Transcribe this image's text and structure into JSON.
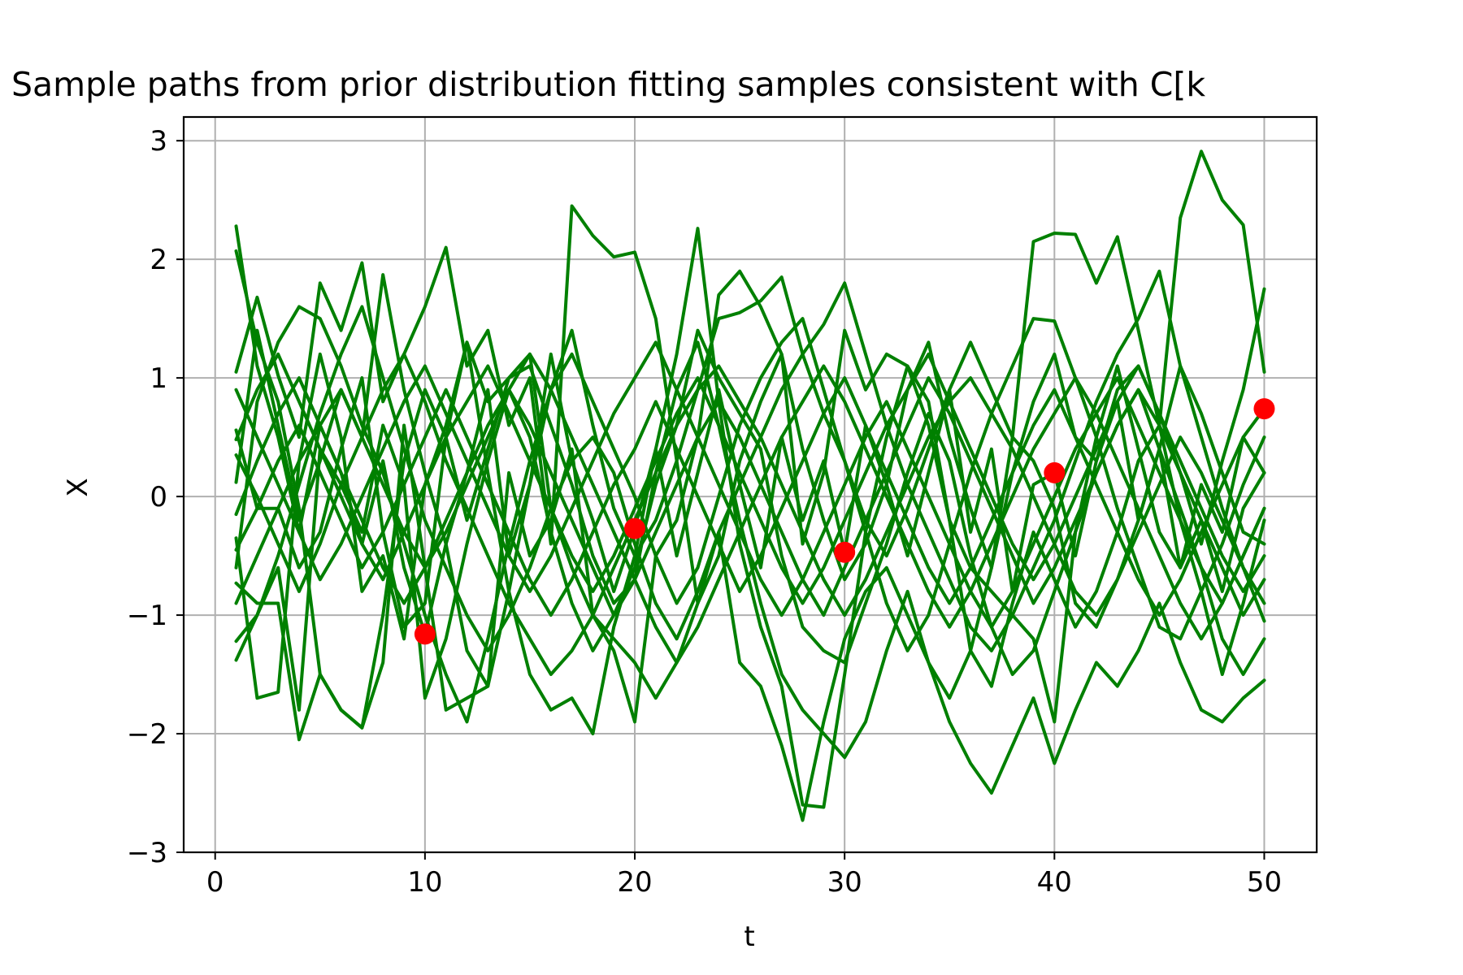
{
  "chart_data": {
    "type": "line",
    "title": "Sample paths from prior distribution fitting samples consistent with C[k",
    "xlabel": "t",
    "ylabel": "X",
    "xlim": [
      -1.5,
      52.5
    ],
    "ylim": [
      -3.0,
      3.2
    ],
    "xticks": [
      0,
      10,
      20,
      30,
      40,
      50
    ],
    "yticks": [
      -3,
      -2,
      -1,
      0,
      1,
      2,
      3
    ],
    "xtick_labels": [
      "0",
      "10",
      "20",
      "30",
      "40",
      "50"
    ],
    "ytick_labels": [
      "−3",
      "−2",
      "−1",
      "0",
      "1",
      "2",
      "3"
    ],
    "grid": true,
    "line_color": "#008000",
    "marker_color": "#ff0000",
    "x": [
      1,
      2,
      3,
      4,
      5,
      6,
      7,
      8,
      9,
      10,
      11,
      12,
      13,
      14,
      15,
      16,
      17,
      18,
      19,
      20,
      21,
      22,
      23,
      24,
      25,
      26,
      27,
      28,
      29,
      30,
      31,
      32,
      33,
      34,
      35,
      36,
      37,
      38,
      39,
      40,
      41,
      42,
      43,
      44,
      45,
      46,
      47,
      48,
      49,
      50
    ],
    "series": [
      {
        "values": [
          2.28,
          1.1,
          0.5,
          -0.3,
          0.6,
          0.2,
          -0.4,
          0.3,
          -0.6,
          -1.16,
          -0.4,
          0.2,
          0.9,
          -0.5,
          0.1,
          1.2,
          0.3,
          -0.2,
          -0.8,
          -0.27,
          0.4,
          -0.5,
          0.2,
          0.9,
          0.1,
          -0.6,
          0.5,
          -0.2,
          0.3,
          -0.47,
          0.6,
          0.1,
          -0.5,
          0.2,
          0.9,
          -0.3,
          0.4,
          -0.8,
          0.1,
          0.2,
          -0.5,
          0.3,
          0.8,
          -0.2,
          0.4,
          -0.6,
          0.1,
          -0.3,
          0.5,
          0.74
        ]
      },
      {
        "values": [
          2.07,
          1.3,
          0.8,
          -0.1,
          -1.5,
          -1.8,
          -1.95,
          -1.4,
          0.6,
          -0.6,
          -1.8,
          -1.7,
          -1.6,
          0.2,
          -0.5,
          -0.2,
          0.4,
          -1.0,
          -1.3,
          -1.9,
          -0.5,
          -0.2,
          0.5,
          1.7,
          1.9,
          1.6,
          1.2,
          -0.4,
          0.2,
          1.4,
          0.9,
          1.2,
          1.1,
          0.6,
          -0.2,
          -0.6,
          -0.8,
          -1.0,
          -1.2,
          -1.9,
          -0.3,
          0.5,
          1.1,
          0.4,
          -0.3,
          -0.6,
          -0.2,
          -0.8,
          -0.1,
          0.2
        ]
      },
      {
        "values": [
          1.05,
          1.68,
          1.02,
          0.5,
          1.8,
          1.4,
          1.97,
          0.8,
          1.2,
          1.6,
          2.1,
          1.1,
          1.4,
          0.6,
          1.0,
          -0.4,
          2.45,
          2.2,
          2.02,
          2.06,
          1.5,
          0.3,
          -0.9,
          -0.5,
          0.3,
          0.8,
          1.2,
          0.4,
          -0.2,
          -0.7,
          -0.4,
          0.1,
          0.9,
          1.3,
          0.5,
          -0.1,
          -0.6,
          0.2,
          0.8,
          1.2,
          0.5,
          0.3,
          0.9,
          1.1,
          0.7,
          0.2,
          -0.4,
          0.3,
          0.9,
          1.75
        ]
      },
      {
        "values": [
          -0.35,
          -1.7,
          -1.65,
          0.3,
          1.2,
          0.5,
          -0.8,
          -0.5,
          -1.2,
          0.1,
          0.6,
          1.3,
          0.2,
          -0.8,
          -1.5,
          -1.8,
          -1.7,
          -2.0,
          -1.1,
          -0.5,
          0.4,
          1.2,
          2.26,
          0.8,
          -0.4,
          -1.1,
          -1.6,
          -2.6,
          -2.62,
          -1.5,
          -0.3,
          0.5,
          1.1,
          0.8,
          -0.2,
          -1.3,
          -1.6,
          -0.9,
          -0.3,
          -0.7,
          -1.1,
          -0.8,
          -0.3,
          0.3,
          0.6,
          -0.2,
          -0.8,
          -1.5,
          -0.9,
          -0.2
        ]
      },
      {
        "values": [
          0.56,
          -0.1,
          -0.1,
          -0.6,
          -0.3,
          0.4,
          1.0,
          -0.3,
          -1.1,
          -0.9,
          0.5,
          1.3,
          0.8,
          1.0,
          1.2,
          -0.1,
          -0.6,
          -1.0,
          -1.2,
          -1.4,
          -1.7,
          -1.4,
          -0.9,
          -0.3,
          -1.4,
          -1.6,
          -2.1,
          -2.73,
          -1.9,
          -1.2,
          -0.8,
          -0.6,
          -1.0,
          -1.4,
          -1.7,
          -1.3,
          -0.6,
          0.5,
          0.3,
          -0.1,
          -0.9,
          -1.1,
          -0.7,
          -0.2,
          0.4,
          1.1,
          0.7,
          0.2,
          -0.3,
          -0.4
        ]
      },
      {
        "values": [
          -1.38,
          -1.0,
          -0.6,
          -1.8,
          0.4,
          0.1,
          -0.3,
          0.6,
          0.1,
          -1.7,
          -1.2,
          -0.4,
          0.3,
          0.9,
          0.5,
          -0.3,
          -0.9,
          -1.3,
          -1.0,
          -0.6,
          0.1,
          0.6,
          1.4,
          1.0,
          0.7,
          0.4,
          -0.5,
          -1.1,
          -1.3,
          -1.4,
          -0.9,
          -0.4,
          0.2,
          0.7,
          0.3,
          -0.5,
          -1.1,
          -1.5,
          -1.3,
          -0.8,
          -0.3,
          0.2,
          0.6,
          0.9,
          0.4,
          -0.1,
          -0.6,
          -1.2,
          -1.5,
          -1.2
        ]
      },
      {
        "values": [
          -0.73,
          -0.9,
          -0.9,
          -2.05,
          -1.5,
          -1.8,
          -1.95,
          -1.0,
          0.3,
          0.9,
          0.5,
          -0.2,
          0.4,
          1.0,
          1.1,
          0.6,
          0.1,
          -0.5,
          -0.9,
          -0.7,
          0.2,
          0.9,
          1.3,
          0.6,
          -0.2,
          -0.9,
          -1.5,
          -1.8,
          -2.0,
          -2.2,
          -1.9,
          -1.3,
          -0.8,
          -1.4,
          -1.9,
          -2.25,
          -2.5,
          -2.1,
          -1.7,
          -2.25,
          -1.8,
          -1.4,
          -1.6,
          -1.3,
          -0.9,
          -1.4,
          -1.8,
          -1.9,
          -1.7,
          -1.55
        ]
      },
      {
        "values": [
          0.12,
          1.4,
          0.6,
          -0.2,
          0.3,
          0.9,
          0.5,
          1.87,
          0.9,
          0.2,
          -0.4,
          -1.3,
          -1.6,
          -0.8,
          0.1,
          0.9,
          1.4,
          0.6,
          -0.1,
          -0.5,
          -0.2,
          0.3,
          0.9,
          1.5,
          1.55,
          1.65,
          1.85,
          1.2,
          0.7,
          0.3,
          -0.2,
          -0.5,
          -0.1,
          0.4,
          0.9,
          1.3,
          0.9,
          0.5,
          2.15,
          2.22,
          2.21,
          1.8,
          2.19,
          1.4,
          0.6,
          2.35,
          2.91,
          2.5,
          2.29,
          1.05
        ]
      },
      {
        "values": [
          -0.6,
          0.8,
          1.3,
          1.6,
          1.5,
          1.1,
          0.6,
          0.2,
          -0.4,
          -1.0,
          -1.5,
          -1.9,
          -1.2,
          -0.4,
          0.3,
          0.9,
          1.2,
          0.8,
          0.4,
          0.0,
          -0.5,
          -0.9,
          -0.6,
          0.0,
          0.6,
          1.0,
          1.3,
          1.5,
          0.9,
          0.3,
          -0.3,
          -0.9,
          -1.3,
          -1.0,
          -0.4,
          0.2,
          0.7,
          1.1,
          1.5,
          1.48,
          1.0,
          0.5,
          -0.1,
          -0.6,
          -1.1,
          -1.2,
          -0.8,
          -0.4,
          0.1,
          0.5
        ]
      },
      {
        "values": [
          -1.22,
          -1.0,
          -0.5,
          0.1,
          0.7,
          1.2,
          1.6,
          1.0,
          0.4,
          -0.2,
          -0.6,
          -1.0,
          -1.3,
          -1.0,
          -0.6,
          -0.1,
          0.3,
          0.5,
          0.2,
          -0.4,
          -0.9,
          -1.2,
          -0.8,
          -0.3,
          0.1,
          0.5,
          0.9,
          1.2,
          1.45,
          1.8,
          1.2,
          0.6,
          0.1,
          -0.3,
          -0.7,
          -1.1,
          -1.3,
          -1.0,
          -0.6,
          -0.2,
          0.3,
          0.8,
          1.2,
          1.5,
          1.9,
          1.1,
          0.5,
          -0.1,
          -0.6,
          -1.05
        ]
      },
      {
        "values": [
          0.35,
          0.0,
          -0.4,
          -0.8,
          -0.4,
          0.1,
          0.5,
          0.9,
          1.2,
          0.8,
          0.3,
          -0.1,
          -0.5,
          -0.9,
          -1.2,
          -1.5,
          -1.3,
          -1.0,
          -0.6,
          -0.2,
          0.2,
          0.6,
          0.9,
          1.1,
          0.8,
          0.5,
          0.1,
          -0.3,
          -0.7,
          -1.0,
          -0.7,
          -0.3,
          0.1,
          0.5,
          0.8,
          1.0,
          0.7,
          0.4,
          0.0,
          -0.4,
          -0.8,
          -1.0,
          -0.7,
          -0.3,
          0.1,
          0.5,
          0.2,
          -0.2,
          -0.6,
          -0.9
        ]
      },
      {
        "values": [
          -0.15,
          0.3,
          0.7,
          1.0,
          0.6,
          0.2,
          -0.2,
          -0.6,
          -0.9,
          -0.6,
          -0.2,
          0.2,
          0.6,
          0.9,
          1.2,
          0.9,
          0.5,
          0.1,
          -0.3,
          -0.7,
          -1.1,
          -1.4,
          -1.1,
          -0.7,
          -0.3,
          0.1,
          0.5,
          0.8,
          1.1,
          0.8,
          0.4,
          0.0,
          -0.4,
          -0.8,
          -1.1,
          -0.8,
          -0.4,
          0.0,
          0.4,
          0.7,
          1.0,
          0.7,
          0.3,
          -0.1,
          -0.5,
          -0.9,
          -1.2,
          -0.9,
          -0.5,
          -0.1
        ]
      },
      {
        "values": [
          0.48,
          0.9,
          1.2,
          0.8,
          0.4,
          0.0,
          -0.4,
          -0.7,
          -0.3,
          0.1,
          0.5,
          0.8,
          1.1,
          0.7,
          0.3,
          -0.1,
          -0.5,
          -0.8,
          -0.5,
          -0.1,
          0.3,
          0.7,
          1.0,
          0.6,
          0.2,
          -0.2,
          -0.6,
          -0.9,
          -0.6,
          -0.2,
          0.2,
          0.6,
          0.9,
          1.2,
          0.8,
          0.4,
          0.0,
          -0.4,
          -0.7,
          -0.4,
          0.0,
          0.4,
          0.8,
          1.1,
          0.7,
          0.3,
          -0.1,
          -0.5,
          -0.8,
          -0.5
        ]
      },
      {
        "values": [
          -0.45,
          -0.1,
          0.3,
          0.6,
          0.2,
          -0.2,
          -0.6,
          -0.3,
          0.1,
          0.5,
          0.9,
          0.5,
          0.1,
          -0.3,
          -0.7,
          -1.0,
          -0.7,
          -0.3,
          0.1,
          0.4,
          0.8,
          0.4,
          0.0,
          -0.4,
          -0.8,
          -0.5,
          -0.1,
          0.3,
          0.7,
          1.0,
          0.6,
          0.2,
          -0.2,
          -0.6,
          -0.9,
          -0.6,
          -0.2,
          0.2,
          0.6,
          0.9,
          0.5,
          0.1,
          -0.3,
          -0.7,
          -1.0,
          -0.7,
          -0.3,
          0.1,
          0.5,
          0.2
        ]
      },
      {
        "values": [
          0.9,
          0.5,
          0.1,
          -0.3,
          -0.7,
          -0.4,
          0.0,
          0.4,
          0.8,
          1.1,
          0.7,
          0.3,
          -0.1,
          -0.5,
          -0.8,
          -0.5,
          -0.1,
          0.3,
          0.7,
          1.0,
          1.3,
          0.9,
          0.5,
          0.1,
          -0.3,
          -0.7,
          -1.0,
          -0.7,
          -0.3,
          0.1,
          0.5,
          0.8,
          0.4,
          0.0,
          -0.4,
          -0.8,
          -1.1,
          -0.8,
          -0.4,
          0.0,
          0.4,
          0.7,
          1.0,
          0.6,
          0.2,
          -0.2,
          -0.6,
          -0.9,
          -0.5,
          -0.1
        ]
      },
      {
        "values": [
          -0.9,
          -0.5,
          -0.1,
          0.3,
          0.6,
          0.9,
          0.5,
          0.1,
          -0.3,
          -0.6,
          -0.3,
          0.1,
          0.5,
          0.9,
          0.6,
          0.2,
          -0.2,
          -0.6,
          -1.0,
          -0.7,
          -0.3,
          0.1,
          0.5,
          0.8,
          0.5,
          0.1,
          -0.3,
          -0.7,
          -1.0,
          -0.6,
          -0.2,
          0.2,
          0.6,
          1.0,
          0.7,
          0.3,
          -0.1,
          -0.5,
          -0.9,
          -0.6,
          -0.2,
          0.2,
          0.6,
          0.9,
          0.6,
          0.2,
          -0.2,
          -0.6,
          -1.0,
          -0.7
        ]
      }
    ],
    "markers": [
      {
        "x": 10,
        "y": -1.16
      },
      {
        "x": 20,
        "y": -0.27
      },
      {
        "x": 30,
        "y": -0.47
      },
      {
        "x": 40,
        "y": 0.2
      },
      {
        "x": 50,
        "y": 0.74
      }
    ]
  }
}
